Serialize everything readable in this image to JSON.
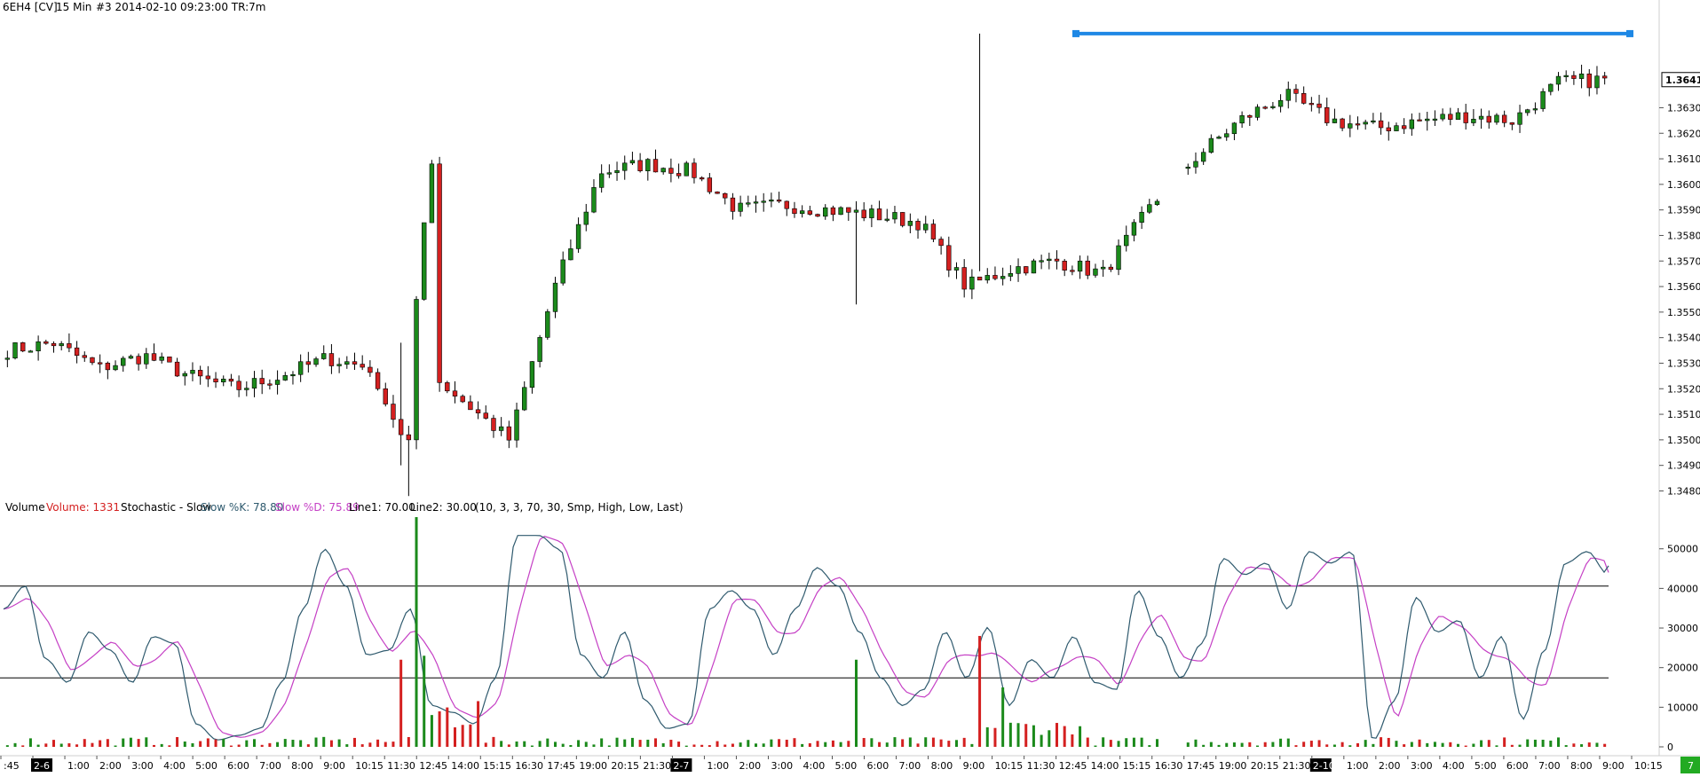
{
  "header": {
    "symbol": "6EH4 [CV]",
    "interval": "15 Min",
    "bar_info": "#3 2014-02-10 09:23:00 TR:7m"
  },
  "indicator_header": {
    "vol_label": "Volume",
    "vol_value": "Volume: 1331",
    "stoch_label": "Stochastic - Slow",
    "slowk": "Slow %K: 78.80",
    "slowd": "Slow %D: 75.89",
    "line1": "Line1: 70.00",
    "line2": "Line2: 30.00",
    "params": "(10, 3, 3, 70, 30, Smp, High, Low, Last)"
  },
  "colors": {
    "up": "#1b8a1b",
    "down": "#d42020",
    "wick": "#000000",
    "slowk": "#2f5a6e",
    "slowd": "#c540c5",
    "resistance": "#1e88e5",
    "guide": "#000000",
    "last_badge_bg": "#ffffff",
    "bottom_badge": "#22aa22"
  },
  "time_axis": {
    "labels": [
      ":45",
      "2-6",
      "1:00",
      "2:00",
      "3:00",
      "4:00",
      "5:00",
      "6:00",
      "7:00",
      "8:00",
      "9:00",
      "10:15",
      "11:30",
      "12:45",
      "14:00",
      "15:15",
      "16:30",
      "17:45",
      "19:00",
      "20:15",
      "21:30",
      "2-7",
      "1:00",
      "2:00",
      "3:00",
      "4:00",
      "5:00",
      "6:00",
      "7:00",
      "8:00",
      "9:00",
      "10:15",
      "11:30",
      "12:45",
      "14:00",
      "15:15",
      "16:30",
      "17:45",
      "19:00",
      "20:15",
      "21:30",
      "2-10",
      "1:00",
      "2:00",
      "3:00",
      "4:00",
      "5:00",
      "6:00",
      "7:00",
      "8:00",
      "9:00",
      "10:15"
    ],
    "date_markers": [
      "2-6",
      "2-7",
      "2-10"
    ]
  },
  "bottom_badge_text": "7",
  "chart_data": [
    {
      "type": "candlestick",
      "title": "",
      "ylim": [
        1.3476,
        1.3668
      ],
      "yticks": [
        1.348,
        1.349,
        1.35,
        1.351,
        1.352,
        1.353,
        1.354,
        1.355,
        1.356,
        1.357,
        1.358,
        1.359,
        1.36,
        1.361,
        1.362,
        1.363
      ],
      "ytick_labels": [
        "1.3480",
        "1.3490",
        "1.3500",
        "1.3510",
        "1.3520",
        "1.3530",
        "1.3540",
        "1.3550",
        "1.3560",
        "1.3570",
        "1.3580",
        "1.3590",
        "1.3600",
        "1.3610",
        "1.3620",
        "1.3630"
      ],
      "last_price": 1.3641,
      "last_price_label": "1.3641",
      "resistance_level": 1.3659,
      "key_closes": [
        1.3535,
        1.3538,
        1.3528,
        1.3533,
        1.3525,
        1.352,
        1.3525,
        1.3532,
        1.3528,
        1.353,
        1.3515,
        1.35,
        1.356,
        1.3605,
        1.3608,
        1.3605,
        1.359,
        1.3592,
        1.359,
        1.3588,
        1.3585,
        1.356,
        1.3567,
        1.357,
        1.3565,
        1.359,
        1.361,
        1.3625,
        1.3635,
        1.3625,
        1.3622,
        1.3625,
        1.3627,
        1.3625,
        1.364,
        1.3641
      ]
    },
    {
      "type": "bar",
      "name": "Volume",
      "ylim": [
        0,
        58000
      ],
      "yticks": [
        0,
        10000,
        20000,
        30000,
        40000,
        50000
      ],
      "ytick_labels": [
        "0",
        "10000",
        "20000",
        "30000",
        "40000",
        "50000"
      ],
      "last_value": 1331,
      "spikes": [
        22000,
        58000,
        23000,
        22000,
        28000,
        15000
      ]
    },
    {
      "type": "line",
      "name": "Stochastic - Slow",
      "series_names": [
        "Slow %K",
        "Slow %D"
      ],
      "ylim": [
        0,
        100
      ],
      "levels": [
        70,
        30
      ],
      "last_k": 78.8,
      "last_d": 75.89,
      "k_key_points": [
        60,
        70,
        38,
        28,
        50,
        42,
        28,
        48,
        45,
        10,
        3,
        5,
        8,
        28,
        60,
        86,
        70,
        40,
        42,
        60,
        18,
        15,
        10,
        30,
        92,
        92,
        86,
        40,
        30,
        50,
        20,
        8,
        10,
        60,
        68,
        60,
        40,
        60,
        78,
        70,
        50,
        30,
        18,
        25,
        50,
        30,
        52,
        18,
        38,
        30,
        48,
        28,
        25,
        68,
        48,
        30,
        45,
        82,
        75,
        80,
        60,
        85,
        80,
        85,
        3,
        20,
        65,
        50,
        55,
        30,
        48,
        12,
        42,
        80,
        85,
        75
      ]
    }
  ]
}
